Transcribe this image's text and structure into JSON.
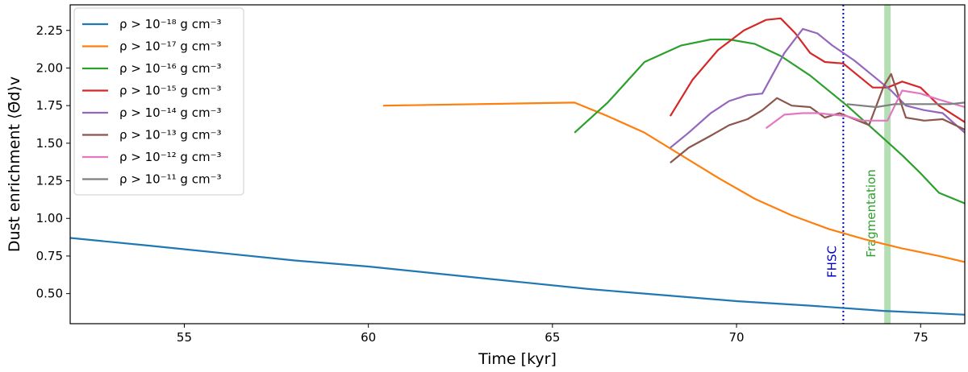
{
  "chart_data": {
    "type": "line",
    "title": "",
    "xlabel": "Time [kyr]",
    "ylabel": "Dust enrichment ⟨Θ̄d⟩v",
    "xlim": [
      51.9,
      76.2
    ],
    "ylim": [
      0.3,
      2.42
    ],
    "xticks": [
      55,
      60,
      65,
      70,
      75
    ],
    "yticks": [
      0.5,
      0.75,
      1.0,
      1.25,
      1.5,
      1.75,
      2.0,
      2.25
    ],
    "xtick_labels": [
      "55",
      "60",
      "65",
      "70",
      "75"
    ],
    "ytick_labels": [
      "0.50",
      "0.75",
      "1.00",
      "1.25",
      "1.50",
      "1.75",
      "2.00",
      "2.25"
    ],
    "grid": false,
    "legend_position": "upper-left",
    "series": [
      {
        "name": "ρ > 10⁻¹⁸ g cm⁻³",
        "color": "#1f77b4",
        "x": [
          51.9,
          54,
          56,
          58,
          60,
          62,
          64,
          66,
          68,
          70,
          72,
          74,
          76.2
        ],
        "y": [
          0.87,
          0.82,
          0.77,
          0.72,
          0.68,
          0.63,
          0.58,
          0.53,
          0.49,
          0.45,
          0.42,
          0.385,
          0.36
        ]
      },
      {
        "name": "ρ > 10⁻¹⁷ g cm⁻³",
        "color": "#ff7f0e",
        "x": [
          60.4,
          65.6,
          66.5,
          67.5,
          68.5,
          69.5,
          70.5,
          71.5,
          72.5,
          73.5,
          74.5,
          75.5,
          76.2
        ],
        "y": [
          1.75,
          1.77,
          1.68,
          1.57,
          1.42,
          1.27,
          1.13,
          1.02,
          0.93,
          0.86,
          0.8,
          0.75,
          0.71
        ]
      },
      {
        "name": "ρ > 10⁻¹⁶ g cm⁻³",
        "color": "#2ca02c",
        "x": [
          65.6,
          66.5,
          67.5,
          68.5,
          69.3,
          69.8,
          70.5,
          71.2,
          72,
          73,
          74,
          74.5,
          75,
          75.5,
          76.2
        ],
        "y": [
          1.57,
          1.77,
          2.04,
          2.15,
          2.19,
          2.19,
          2.16,
          2.08,
          1.95,
          1.75,
          1.53,
          1.42,
          1.3,
          1.17,
          1.1
        ]
      },
      {
        "name": "ρ > 10⁻¹⁵ g cm⁻³",
        "color": "#d62728",
        "x": [
          68.2,
          68.8,
          69.5,
          70.2,
          70.8,
          71.2,
          71.6,
          72,
          72.4,
          72.9,
          73.3,
          73.7,
          74.1,
          74.5,
          75,
          75.5,
          76.2
        ],
        "y": [
          1.68,
          1.92,
          2.12,
          2.25,
          2.32,
          2.33,
          2.23,
          2.1,
          2.04,
          2.03,
          1.95,
          1.87,
          1.87,
          1.91,
          1.87,
          1.75,
          1.64
        ]
      },
      {
        "name": "ρ > 10⁻¹⁴ g cm⁻³",
        "color": "#9467bd",
        "x": [
          68.2,
          68.7,
          69.3,
          69.8,
          70.3,
          70.7,
          71.3,
          71.8,
          72.2,
          72.6,
          73.2,
          73.7,
          74.2,
          74.6,
          75.1,
          75.6,
          76.2
        ],
        "y": [
          1.47,
          1.57,
          1.7,
          1.78,
          1.82,
          1.83,
          2.1,
          2.26,
          2.23,
          2.15,
          2.05,
          1.95,
          1.85,
          1.75,
          1.72,
          1.7,
          1.57
        ]
      },
      {
        "name": "ρ > 10⁻¹³ g cm⁻³",
        "color": "#8c564b",
        "x": [
          68.2,
          68.7,
          69.3,
          69.8,
          70.3,
          70.7,
          71.1,
          71.5,
          72.0,
          72.4,
          72.8,
          73.2,
          73.6,
          74.0,
          74.2,
          74.6,
          75.1,
          75.6,
          76.2
        ],
        "y": [
          1.37,
          1.47,
          1.55,
          1.62,
          1.66,
          1.72,
          1.8,
          1.75,
          1.74,
          1.67,
          1.7,
          1.66,
          1.62,
          1.88,
          1.96,
          1.67,
          1.65,
          1.66,
          1.59
        ]
      },
      {
        "name": "ρ > 10⁻¹² g cm⁻³",
        "color": "#e377c2",
        "x": [
          70.8,
          71.3,
          71.8,
          72.2,
          72.6,
          73,
          73.4,
          73.8,
          74.1,
          74.5,
          75,
          75.5,
          76.2
        ],
        "y": [
          1.6,
          1.69,
          1.7,
          1.7,
          1.69,
          1.68,
          1.65,
          1.65,
          1.65,
          1.85,
          1.83,
          1.79,
          1.74
        ]
      },
      {
        "name": "ρ > 10⁻¹¹ g cm⁻³",
        "color": "#7f7f7f",
        "x": [
          73.0,
          73.4,
          73.8,
          74.3,
          74.7,
          75.3,
          75.8,
          76.2
        ],
        "y": [
          1.76,
          1.75,
          1.74,
          1.76,
          1.76,
          1.76,
          1.76,
          1.77
        ]
      }
    ],
    "annotations": [
      {
        "label": "FHSC",
        "x": 72.9,
        "style": "dotted vertical line",
        "color": "#0000cc"
      },
      {
        "label": "Fragmentation",
        "x": 74.1,
        "style": "shaded vertical band",
        "color": "#2ca02c"
      }
    ]
  }
}
